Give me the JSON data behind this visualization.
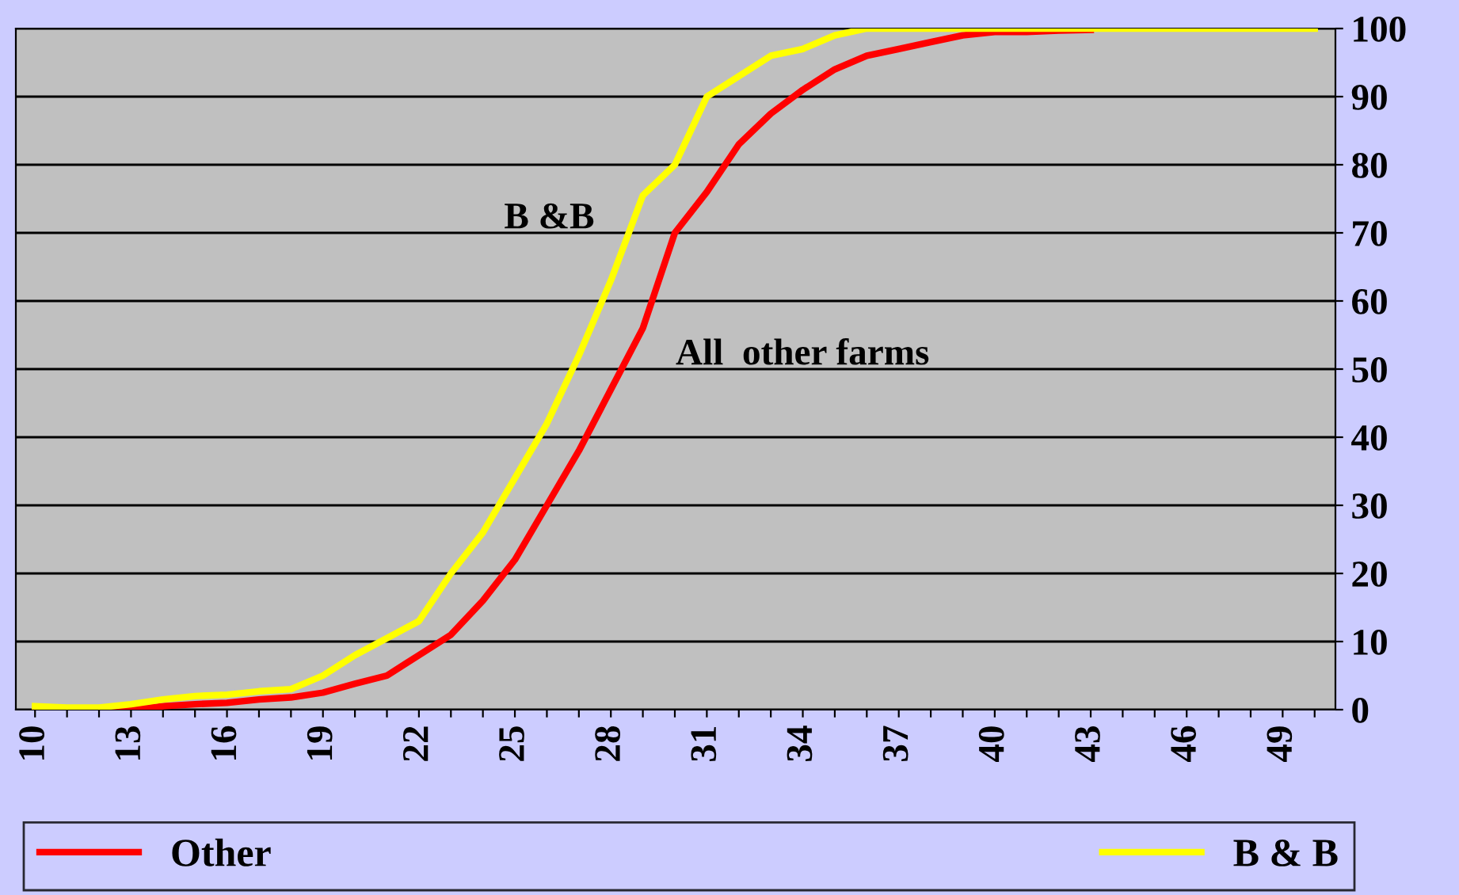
{
  "chart_data": {
    "type": "line",
    "categories": [
      "10",
      null,
      null,
      "13",
      null,
      null,
      "16",
      null,
      null,
      "19",
      null,
      null,
      "22",
      null,
      null,
      "25",
      null,
      null,
      "28",
      null,
      null,
      "31",
      null,
      null,
      "34",
      null,
      null,
      "37",
      null,
      null,
      "40",
      null,
      null,
      "43",
      null,
      null,
      "46",
      null,
      null,
      "49",
      null
    ],
    "series": [
      {
        "name": "Other",
        "color": "#ff0000",
        "values": [
          0,
          0,
          0,
          0,
          0.5,
          0.8,
          1,
          1.5,
          1.8,
          2.5,
          3.8,
          5,
          8,
          11,
          16,
          22,
          30,
          38,
          47,
          56,
          70,
          76,
          83,
          87.5,
          91,
          94,
          96,
          97,
          98,
          99,
          99.5,
          99.5,
          99.7,
          99.8,
          null,
          null,
          null,
          null,
          null,
          null,
          null
        ]
      },
      {
        "name": "B & B",
        "color": "#ffff00",
        "values": [
          0.5,
          0.3,
          0.3,
          0.8,
          1.5,
          2,
          2.2,
          2.7,
          3,
          5,
          8,
          10.5,
          13,
          20,
          26,
          34,
          42,
          52,
          63,
          75.5,
          80,
          90,
          93,
          96,
          97,
          99,
          100,
          100,
          100,
          100,
          100,
          100,
          100,
          100,
          100,
          100,
          100,
          100,
          100,
          100,
          100
        ]
      }
    ],
    "ylim": [
      0,
      100
    ],
    "yticks": [
      0,
      10,
      20,
      30,
      40,
      50,
      60,
      70,
      80,
      90,
      100
    ],
    "grid": "y",
    "legend": "bottom",
    "marker": "none",
    "line_style": "solid",
    "annotations": [
      "B &B",
      "All  other farms"
    ]
  }
}
